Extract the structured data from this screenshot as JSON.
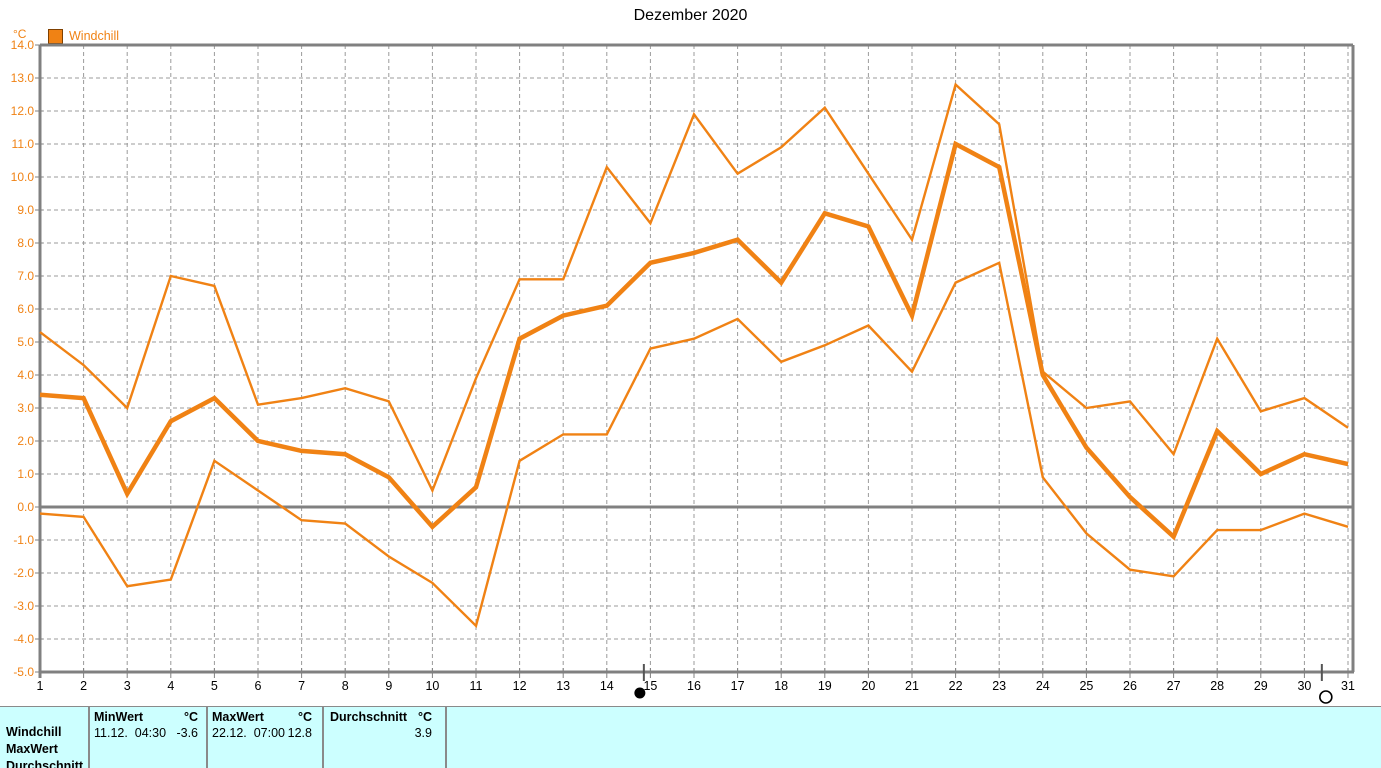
{
  "title": "Dezember 2020",
  "y_axis_unit_label": "°C",
  "legend": {
    "label": "Windchill",
    "color": "#F08214"
  },
  "chart_data": {
    "type": "line",
    "title": "Dezember 2020",
    "ylabel": "°C",
    "xlabel": "",
    "ylim": [
      -5,
      14
    ],
    "grid": true,
    "legend_position": "top-left",
    "line_color": "#F08214",
    "x": [
      1,
      2,
      3,
      4,
      5,
      6,
      7,
      8,
      9,
      10,
      11,
      12,
      13,
      14,
      15,
      16,
      17,
      18,
      19,
      20,
      21,
      22,
      23,
      24,
      25,
      26,
      27,
      28,
      29,
      30,
      31
    ],
    "x_ticks": [
      "1",
      "2",
      "3",
      "4",
      "5",
      "6",
      "7",
      "8",
      "9",
      "10",
      "11",
      "12",
      "13",
      "14",
      "15",
      "16",
      "17",
      "18",
      "19",
      "20",
      "21",
      "22",
      "23",
      "24",
      "25",
      "26",
      "27",
      "28",
      "29",
      "30",
      "31"
    ],
    "y_ticks": [
      "14.0",
      "13.0",
      "12.0",
      "11.0",
      "10.0",
      "9.0",
      "8.0",
      "7.0",
      "6.0",
      "5.0",
      "4.0",
      "3.0",
      "2.0",
      "1.0",
      "0.0",
      "-1.0",
      "-2.0",
      "-3.0",
      "-4.0",
      "-5.0"
    ],
    "solid_lines_at": [
      14,
      0,
      -5
    ],
    "series": [
      {
        "name": "Windchill daily minimum",
        "role": "min",
        "width": "thin",
        "values": [
          -0.2,
          -0.3,
          -2.4,
          -2.2,
          1.4,
          0.5,
          -0.4,
          -0.5,
          -1.5,
          -2.3,
          -3.6,
          1.4,
          2.2,
          2.2,
          4.8,
          5.1,
          5.7,
          4.4,
          4.9,
          5.5,
          4.1,
          6.8,
          7.4,
          0.9,
          -0.8,
          -1.9,
          -2.1,
          -0.7,
          -0.7,
          -0.2,
          -0.6
        ]
      },
      {
        "name": "Windchill daily maximum",
        "role": "max",
        "width": "thin",
        "values": [
          5.3,
          4.3,
          3.0,
          7.0,
          6.7,
          3.1,
          3.3,
          3.6,
          3.2,
          0.5,
          3.9,
          6.9,
          6.9,
          10.3,
          8.6,
          11.9,
          10.1,
          10.9,
          12.1,
          10.1,
          8.1,
          12.8,
          11.6,
          4.1,
          3.0,
          3.2,
          1.6,
          5.1,
          2.9,
          3.3,
          2.4
        ]
      },
      {
        "name": "Windchill daily average",
        "role": "average",
        "width": "thick",
        "values": [
          3.4,
          3.3,
          0.4,
          2.6,
          3.3,
          2.0,
          1.7,
          1.6,
          0.9,
          -0.6,
          0.6,
          5.1,
          5.8,
          6.1,
          7.4,
          7.7,
          8.1,
          6.8,
          8.9,
          8.5,
          5.8,
          11.0,
          10.3,
          4.0,
          1.8,
          0.3,
          -0.9,
          2.3,
          1.0,
          1.6,
          1.3
        ]
      }
    ],
    "annotations": [
      {
        "type": "new-moon",
        "symbol": "●",
        "day": 14.85
      },
      {
        "type": "full-moon",
        "symbol": "○",
        "day": 30.4
      }
    ]
  },
  "stats_panel": {
    "background": "#CCFFFF",
    "row_labels": [
      "Windchill",
      "MaxWert",
      "Durchschnitt"
    ],
    "columns": [
      {
        "header": "MinWert",
        "unit": "°C",
        "datetime": "11.12.  04:30",
        "value": "-3.6"
      },
      {
        "header": "MaxWert",
        "unit": "°C",
        "datetime": "22.12.  07:00",
        "value": "12.8"
      },
      {
        "header": "Durchschnitt",
        "unit": "°C",
        "datetime": "",
        "value": "3.9"
      }
    ]
  }
}
